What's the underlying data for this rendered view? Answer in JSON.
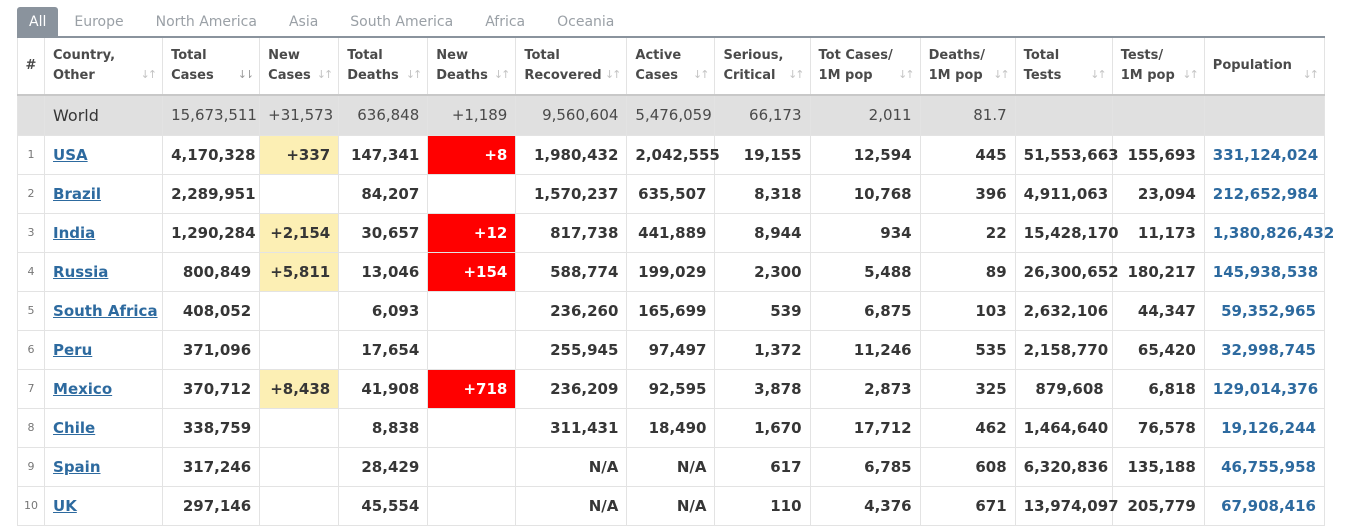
{
  "tabs": [
    "All",
    "Europe",
    "North America",
    "Asia",
    "South America",
    "Africa",
    "Oceania"
  ],
  "headers": {
    "rank": "#",
    "country": [
      "Country,",
      "Other"
    ],
    "total_cases": [
      "Total",
      "Cases"
    ],
    "new_cases": [
      "New",
      "Cases"
    ],
    "total_deaths": [
      "Total",
      "Deaths"
    ],
    "new_deaths": [
      "New",
      "Deaths"
    ],
    "total_recovered": [
      "Total",
      "Recovered"
    ],
    "active_cases": [
      "Active",
      "Cases"
    ],
    "serious": [
      "Serious,",
      "Critical"
    ],
    "cases_per_1m": [
      "Tot Cases/",
      "1M pop"
    ],
    "deaths_per_1m": [
      "Deaths/",
      "1M pop"
    ],
    "total_tests": [
      "Total",
      "Tests"
    ],
    "tests_per_1m": [
      "Tests/",
      "1M pop"
    ],
    "population": [
      "Population",
      ""
    ]
  },
  "world": {
    "country": "World",
    "total_cases": "15,673,511",
    "new_cases": "+31,573",
    "total_deaths": "636,848",
    "new_deaths": "+1,189",
    "total_recovered": "9,560,604",
    "active_cases": "5,476,059",
    "serious": "66,173",
    "cases_per_1m": "2,011",
    "deaths_per_1m": "81.7",
    "total_tests": "",
    "tests_per_1m": "",
    "population": ""
  },
  "rows": [
    {
      "rank": "1",
      "country": "USA",
      "total_cases": "4,170,328",
      "new_cases": "+337",
      "total_deaths": "147,341",
      "new_deaths": "+8",
      "total_recovered": "1,980,432",
      "active_cases": "2,042,555",
      "serious": "19,155",
      "cases_per_1m": "12,594",
      "deaths_per_1m": "445",
      "total_tests": "51,553,663",
      "tests_per_1m": "155,693",
      "population": "331,124,024"
    },
    {
      "rank": "2",
      "country": "Brazil",
      "total_cases": "2,289,951",
      "new_cases": "",
      "total_deaths": "84,207",
      "new_deaths": "",
      "total_recovered": "1,570,237",
      "active_cases": "635,507",
      "serious": "8,318",
      "cases_per_1m": "10,768",
      "deaths_per_1m": "396",
      "total_tests": "4,911,063",
      "tests_per_1m": "23,094",
      "population": "212,652,984"
    },
    {
      "rank": "3",
      "country": "India",
      "total_cases": "1,290,284",
      "new_cases": "+2,154",
      "total_deaths": "30,657",
      "new_deaths": "+12",
      "total_recovered": "817,738",
      "active_cases": "441,889",
      "serious": "8,944",
      "cases_per_1m": "934",
      "deaths_per_1m": "22",
      "total_tests": "15,428,170",
      "tests_per_1m": "11,173",
      "population": "1,380,826,432"
    },
    {
      "rank": "4",
      "country": "Russia",
      "total_cases": "800,849",
      "new_cases": "+5,811",
      "total_deaths": "13,046",
      "new_deaths": "+154",
      "total_recovered": "588,774",
      "active_cases": "199,029",
      "serious": "2,300",
      "cases_per_1m": "5,488",
      "deaths_per_1m": "89",
      "total_tests": "26,300,652",
      "tests_per_1m": "180,217",
      "population": "145,938,538"
    },
    {
      "rank": "5",
      "country": "South Africa",
      "total_cases": "408,052",
      "new_cases": "",
      "total_deaths": "6,093",
      "new_deaths": "",
      "total_recovered": "236,260",
      "active_cases": "165,699",
      "serious": "539",
      "cases_per_1m": "6,875",
      "deaths_per_1m": "103",
      "total_tests": "2,632,106",
      "tests_per_1m": "44,347",
      "population": "59,352,965"
    },
    {
      "rank": "6",
      "country": "Peru",
      "total_cases": "371,096",
      "new_cases": "",
      "total_deaths": "17,654",
      "new_deaths": "",
      "total_recovered": "255,945",
      "active_cases": "97,497",
      "serious": "1,372",
      "cases_per_1m": "11,246",
      "deaths_per_1m": "535",
      "total_tests": "2,158,770",
      "tests_per_1m": "65,420",
      "population": "32,998,745"
    },
    {
      "rank": "7",
      "country": "Mexico",
      "total_cases": "370,712",
      "new_cases": "+8,438",
      "total_deaths": "41,908",
      "new_deaths": "+718",
      "total_recovered": "236,209",
      "active_cases": "92,595",
      "serious": "3,878",
      "cases_per_1m": "2,873",
      "deaths_per_1m": "325",
      "total_tests": "879,608",
      "tests_per_1m": "6,818",
      "population": "129,014,376"
    },
    {
      "rank": "8",
      "country": "Chile",
      "total_cases": "338,759",
      "new_cases": "",
      "total_deaths": "8,838",
      "new_deaths": "",
      "total_recovered": "311,431",
      "active_cases": "18,490",
      "serious": "1,670",
      "cases_per_1m": "17,712",
      "deaths_per_1m": "462",
      "total_tests": "1,464,640",
      "tests_per_1m": "76,578",
      "population": "19,126,244"
    },
    {
      "rank": "9",
      "country": "Spain",
      "total_cases": "317,246",
      "new_cases": "",
      "total_deaths": "28,429",
      "new_deaths": "",
      "total_recovered": "N/A",
      "active_cases": "N/A",
      "serious": "617",
      "cases_per_1m": "6,785",
      "deaths_per_1m": "608",
      "total_tests": "6,320,836",
      "tests_per_1m": "135,188",
      "population": "46,755,958"
    },
    {
      "rank": "10",
      "country": "UK",
      "total_cases": "297,146",
      "new_cases": "",
      "total_deaths": "45,554",
      "new_deaths": "",
      "total_recovered": "N/A",
      "active_cases": "N/A",
      "serious": "110",
      "cases_per_1m": "4,376",
      "deaths_per_1m": "671",
      "total_tests": "13,974,097",
      "tests_per_1m": "205,779",
      "population": "67,908,416"
    }
  ],
  "colors": {
    "tab_active_bg": "#8a939d",
    "world_row_bg": "#e0e0e0",
    "new_cases_highlight": "#fcefb4",
    "new_deaths_highlight": "#ff0000",
    "link": "#2d6a9f"
  },
  "icons": {
    "sort": "sort-icon",
    "sort_active": "sort-desc-icon"
  },
  "active_sort_column": "total_cases"
}
